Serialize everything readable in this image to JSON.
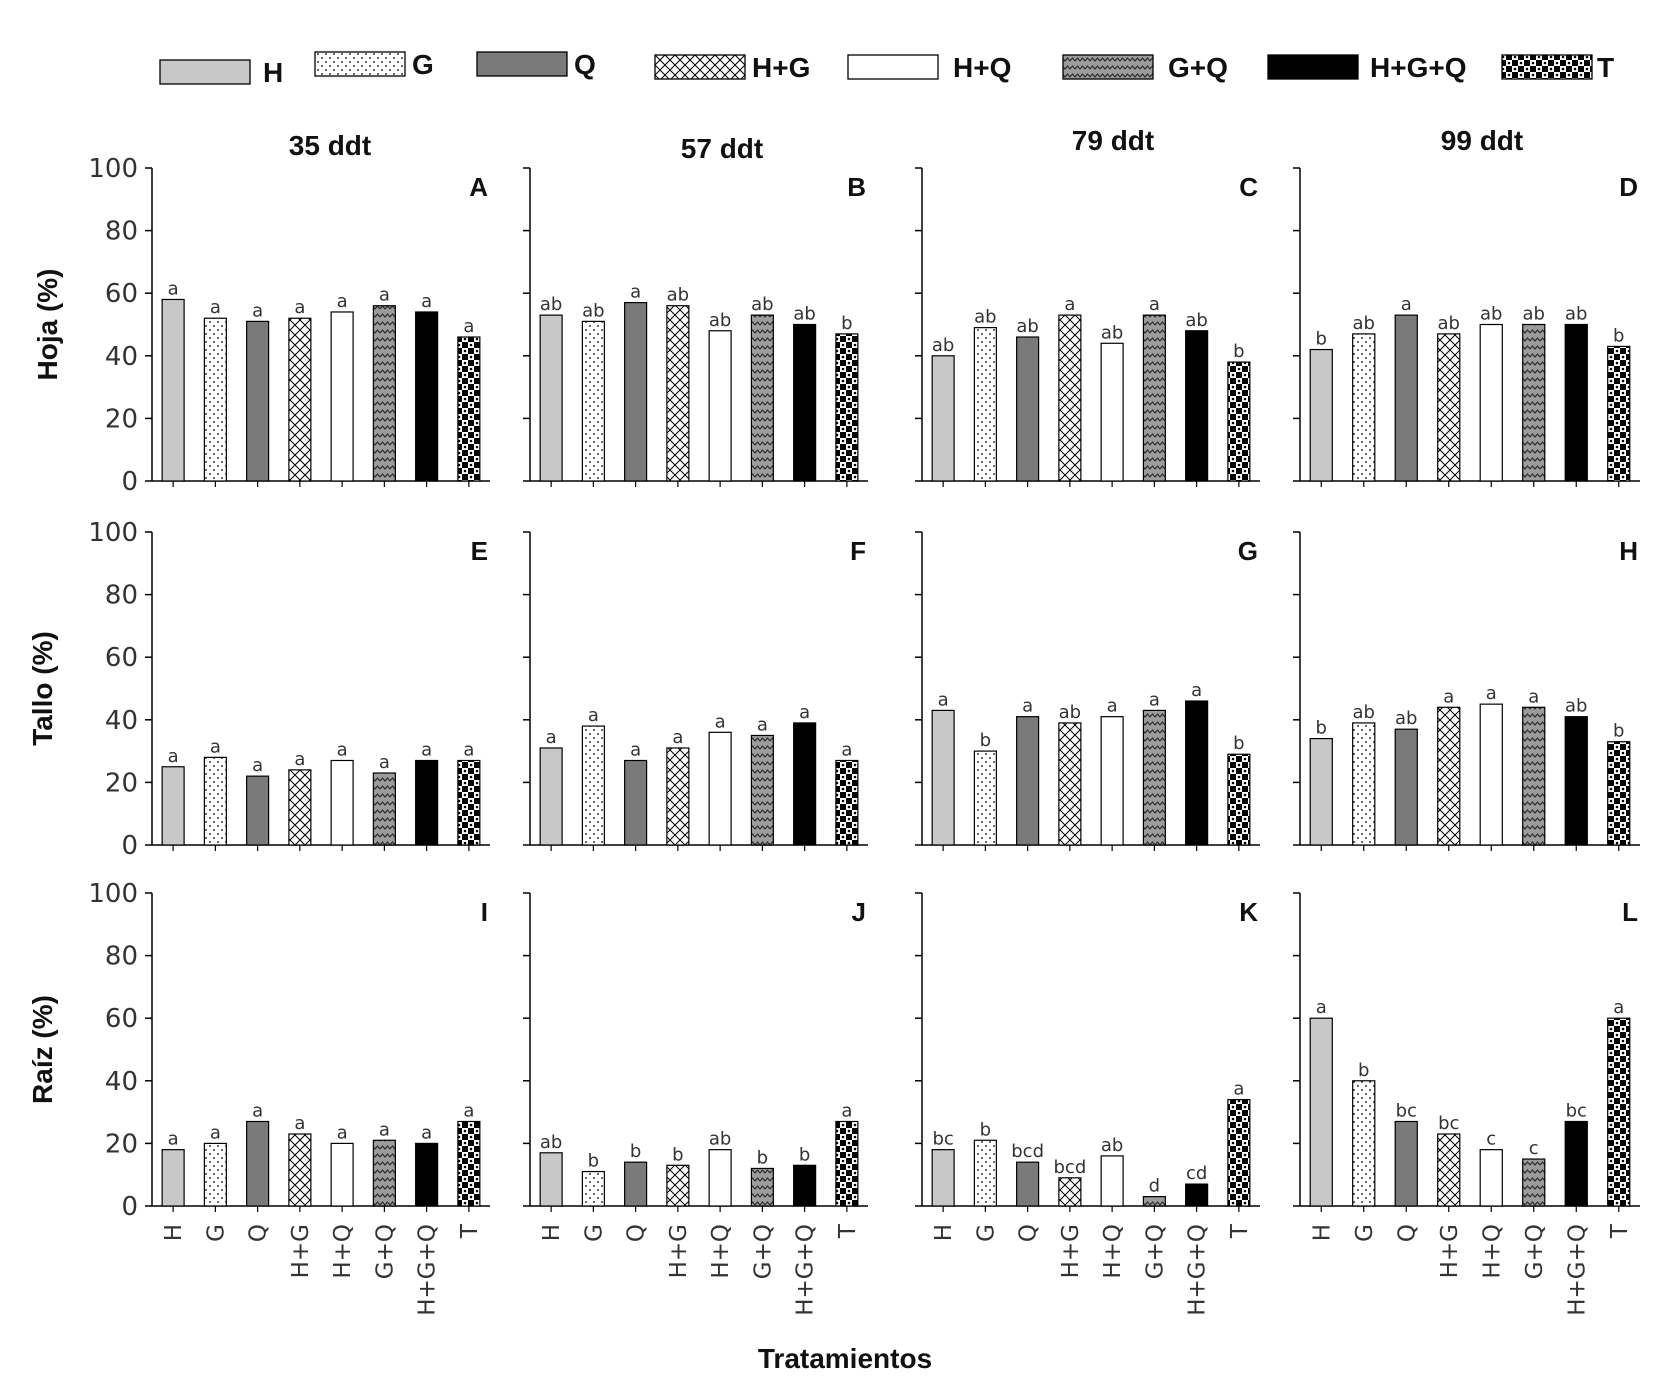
{
  "chart_data": {
    "type": "bar",
    "xlabel": "Tratamientos",
    "ylim": [
      0,
      100
    ],
    "yticks": [
      0,
      20,
      40,
      60,
      80,
      100
    ],
    "categories": [
      "H",
      "G",
      "Q",
      "H+G",
      "H+Q",
      "G+Q",
      "H+G+Q",
      "T"
    ],
    "legend": [
      "H",
      "G",
      "Q",
      "H+G",
      "H+Q",
      "G+Q",
      "H+G+Q",
      "T"
    ],
    "fills": {
      "H": "#c8c8c8",
      "Q": "#7a7a7a",
      "H+Q": "#ffffff",
      "H+G+Q": "#000000"
    },
    "columns": [
      "35 ddt",
      "57 ddt",
      "79 ddt",
      "99 ddt"
    ],
    "rows": [
      "Hoja (%)",
      "Tallo (%)",
      "Raíz (%)"
    ],
    "panels": [
      {
        "id": "A",
        "row": 0,
        "col": 0,
        "values": [
          58,
          52,
          51,
          52,
          54,
          56,
          54,
          46
        ],
        "letters": [
          "a",
          "a",
          "a",
          "a",
          "a",
          "a",
          "a",
          "a"
        ]
      },
      {
        "id": "B",
        "row": 0,
        "col": 1,
        "values": [
          53,
          51,
          57,
          56,
          48,
          53,
          50,
          47
        ],
        "letters": [
          "ab",
          "ab",
          "a",
          "ab",
          "ab",
          "ab",
          "ab",
          "b"
        ]
      },
      {
        "id": "C",
        "row": 0,
        "col": 2,
        "values": [
          40,
          49,
          46,
          53,
          44,
          53,
          48,
          38
        ],
        "letters": [
          "ab",
          "ab",
          "ab",
          "a",
          "ab",
          "a",
          "ab",
          "b"
        ]
      },
      {
        "id": "D",
        "row": 0,
        "col": 3,
        "values": [
          42,
          47,
          53,
          47,
          50,
          50,
          50,
          43
        ],
        "letters": [
          "b",
          "ab",
          "a",
          "ab",
          "ab",
          "ab",
          "ab",
          "b"
        ]
      },
      {
        "id": "E",
        "row": 1,
        "col": 0,
        "values": [
          25,
          28,
          22,
          24,
          27,
          23,
          27,
          27
        ],
        "letters": [
          "a",
          "a",
          "a",
          "a",
          "a",
          "a",
          "a",
          "a"
        ]
      },
      {
        "id": "F",
        "row": 1,
        "col": 1,
        "values": [
          31,
          38,
          27,
          31,
          36,
          35,
          39,
          27
        ],
        "letters": [
          "a",
          "a",
          "a",
          "a",
          "a",
          "a",
          "a",
          "a"
        ]
      },
      {
        "id": "G",
        "row": 1,
        "col": 2,
        "values": [
          43,
          30,
          41,
          39,
          41,
          43,
          46,
          29
        ],
        "letters": [
          "a",
          "b",
          "a",
          "ab",
          "a",
          "a",
          "a",
          "b"
        ]
      },
      {
        "id": "H",
        "row": 1,
        "col": 3,
        "values": [
          34,
          39,
          37,
          44,
          45,
          44,
          41,
          33
        ],
        "letters": [
          "b",
          "ab",
          "ab",
          "a",
          "a",
          "a",
          "ab",
          "b"
        ]
      },
      {
        "id": "I",
        "row": 2,
        "col": 0,
        "values": [
          18,
          20,
          27,
          23,
          20,
          21,
          20,
          27
        ],
        "letters": [
          "a",
          "a",
          "a",
          "a",
          "a",
          "a",
          "a",
          "a"
        ]
      },
      {
        "id": "J",
        "row": 2,
        "col": 1,
        "values": [
          17,
          11,
          14,
          13,
          18,
          12,
          13,
          27
        ],
        "letters": [
          "ab",
          "b",
          "b",
          "b",
          "ab",
          "b",
          "b",
          "a"
        ]
      },
      {
        "id": "K",
        "row": 2,
        "col": 2,
        "values": [
          18,
          21,
          14,
          9,
          16,
          3,
          7,
          34
        ],
        "letters": [
          "bc",
          "b",
          "bcd",
          "bcd",
          "ab",
          "d",
          "cd",
          "a"
        ]
      },
      {
        "id": "L",
        "row": 2,
        "col": 3,
        "values": [
          60,
          40,
          27,
          23,
          18,
          15,
          27,
          60
        ],
        "letters": [
          "a",
          "b",
          "bc",
          "bc",
          "c",
          "c",
          "bc",
          "a"
        ]
      }
    ]
  }
}
